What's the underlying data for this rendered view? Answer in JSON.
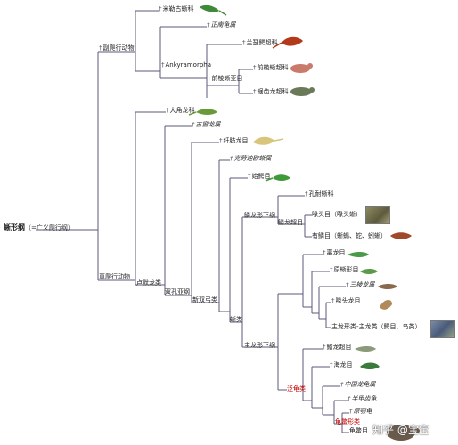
{
  "root": {
    "name": "蜥形纲",
    "subtitle": "（=广义爬行纲）"
  },
  "nodes": {
    "parareptilia": "副爬行动物",
    "millerettidae": "米勒古蜥科",
    "eunotosaurus": "正南龟属",
    "ankyramorpha": "Ankyramorpha",
    "lanthanosuchoidea": "兰瑟鳄超科",
    "procolophonia": "前棱蜥亚目",
    "procolophonoidea": "前棱蜥超科",
    "pareiasauroidea": "锯齿龙超科",
    "eureptilia": "真爬行动物",
    "captorhinidae": "大角龙科",
    "paleothyris": "古窗龙属",
    "romeriida": "卢默龙类",
    "diapsida": "双孔亚纲",
    "araeoscelidia": "纤肢龙目",
    "neodiapsida": "新双弓类",
    "younginiformes": "始鳄目",
    "claudiosaurus": "克劳迪欧蜥属",
    "sauria": "蜥类",
    "lepidosauromorpha": "鳞龙形下纲",
    "kuehneosauridae": "孔耐蜥科",
    "lepidosauria": "鳞龙超目",
    "rhynchocephalia": "喙头目（喙头蜥）",
    "squamata": "有鳞目（蜥蜴、蛇、蚓蜥）",
    "archosauromorpha": "主龙形下纲",
    "choristodera": "离龙目",
    "protorosauria": "原蜥形目",
    "trilophosaurus": "三棱龙属",
    "rhynchosauria": "喙头龙目",
    "archosauriformes": "主龙形类-主龙类（鳄目、鸟类）",
    "pantestudines": "泛龟类",
    "ichthyosauria": "鳍龙超目",
    "thalattosauria": "海龙目",
    "odontochelys": "中国龙龟属",
    "proganochelys": "半甲齿龟",
    "odontochelys2": "原颚龟",
    "testudines": "龟鳖形类",
    "testudines2": "龟鳖目"
  },
  "watermark": "知乎 @宝宝",
  "colors": {
    "line": "#5a5a78",
    "text": "#222222",
    "red": "#c00000"
  }
}
